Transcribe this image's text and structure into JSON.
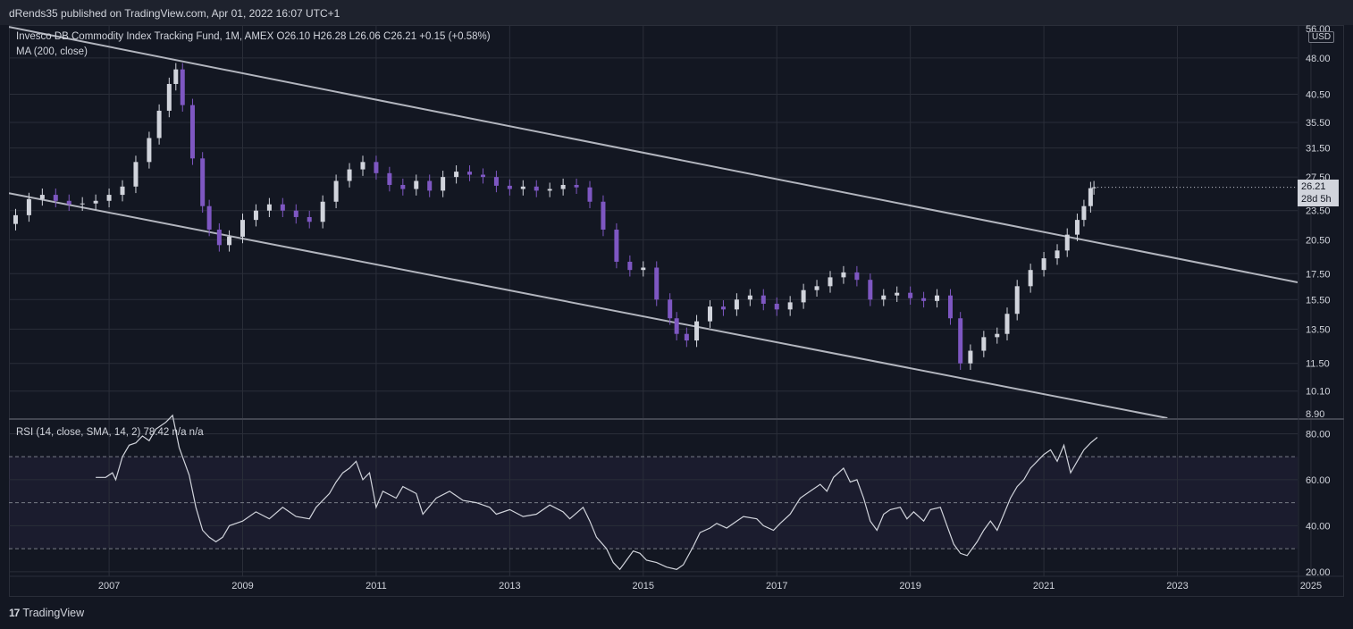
{
  "header": {
    "published": "dRends35 published on TradingView.com, Apr 01, 2022 16:07 UTC+1"
  },
  "legend": {
    "symbol": "Invesco DB Commodity Index Tracking Fund, 1M, AMEX  O26.10  H26.28  L26.06  C26.21  +0.15 (+0.58%)",
    "ma": "MA (200, close)",
    "rsi": "RSI (14, close, SMA, 14, 2)  78.42  n/a  n/a"
  },
  "price_axis": {
    "currency": "USD",
    "last_price": "26.21",
    "countdown": "28d 5h",
    "ticks": [
      "56.00",
      "48.00",
      "40.50",
      "35.50",
      "31.50",
      "27.50",
      "23.50",
      "20.50",
      "17.50",
      "15.50",
      "13.50",
      "11.50",
      "10.10",
      "8.90"
    ]
  },
  "rsi_axis": {
    "ticks": [
      "80.00",
      "60.00",
      "40.00",
      "20.00"
    ]
  },
  "time_axis": {
    "ticks": [
      "2007",
      "2009",
      "2011",
      "2013",
      "2015",
      "2017",
      "2019",
      "2021",
      "2023",
      "2025"
    ]
  },
  "footer": {
    "brand": "TradingView",
    "logo_icon": "tradingview-logo-icon"
  },
  "colors": {
    "background": "#131722",
    "up": "#d1d4dc",
    "down": "#7e57c2",
    "rsi_band": "#7e57c2"
  },
  "chart_data": [
    {
      "type": "candlestick",
      "title": "Invesco DB Commodity Index Tracking Fund, 1M, AMEX",
      "interval": "1M",
      "scale": "log",
      "ylim": [
        8.9,
        56
      ],
      "xlim": [
        2006.0,
        2025.3
      ],
      "last": {
        "open": 26.1,
        "high": 26.28,
        "low": 26.06,
        "close": 26.21,
        "change": "+0.15 (+0.58%)"
      },
      "close_series": [
        [
          2006.1,
          23.0
        ],
        [
          2006.3,
          24.8
        ],
        [
          2006.5,
          25.3
        ],
        [
          2006.7,
          24.6
        ],
        [
          2006.9,
          24.2
        ],
        [
          2007.1,
          24.3
        ],
        [
          2007.3,
          24.6
        ],
        [
          2007.5,
          25.3
        ],
        [
          2007.7,
          26.3
        ],
        [
          2007.9,
          29.5
        ],
        [
          2008.1,
          33.0
        ],
        [
          2008.25,
          37.5
        ],
        [
          2008.4,
          42.5
        ],
        [
          2008.5,
          45.5
        ],
        [
          2008.6,
          38.5
        ],
        [
          2008.75,
          30.0
        ],
        [
          2008.9,
          24.0
        ],
        [
          2009.0,
          21.5
        ],
        [
          2009.15,
          20.0
        ],
        [
          2009.3,
          20.8
        ],
        [
          2009.5,
          22.5
        ],
        [
          2009.7,
          23.5
        ],
        [
          2009.9,
          24.2
        ],
        [
          2010.1,
          23.5
        ],
        [
          2010.3,
          22.8
        ],
        [
          2010.5,
          22.3
        ],
        [
          2010.7,
          24.5
        ],
        [
          2010.9,
          27.0
        ],
        [
          2011.1,
          28.5
        ],
        [
          2011.3,
          29.5
        ],
        [
          2011.5,
          28.0
        ],
        [
          2011.7,
          26.5
        ],
        [
          2011.9,
          26.0
        ],
        [
          2012.1,
          27.0
        ],
        [
          2012.3,
          25.8
        ],
        [
          2012.5,
          27.5
        ],
        [
          2012.7,
          28.2
        ],
        [
          2012.9,
          27.8
        ],
        [
          2013.1,
          27.5
        ],
        [
          2013.3,
          26.4
        ],
        [
          2013.5,
          26.0
        ],
        [
          2013.7,
          26.3
        ],
        [
          2013.9,
          25.8
        ],
        [
          2014.1,
          26.0
        ],
        [
          2014.3,
          26.5
        ],
        [
          2014.5,
          26.2
        ],
        [
          2014.7,
          24.5
        ],
        [
          2014.9,
          21.5
        ],
        [
          2015.1,
          18.5
        ],
        [
          2015.3,
          17.8
        ],
        [
          2015.5,
          18.0
        ],
        [
          2015.7,
          15.5
        ],
        [
          2015.9,
          14.2
        ],
        [
          2016.0,
          13.2
        ],
        [
          2016.15,
          12.8
        ],
        [
          2016.3,
          14.0
        ],
        [
          2016.5,
          15.0
        ],
        [
          2016.7,
          14.8
        ],
        [
          2016.9,
          15.5
        ],
        [
          2017.1,
          15.8
        ],
        [
          2017.3,
          15.2
        ],
        [
          2017.5,
          14.8
        ],
        [
          2017.7,
          15.3
        ],
        [
          2017.9,
          16.2
        ],
        [
          2018.1,
          16.5
        ],
        [
          2018.3,
          17.2
        ],
        [
          2018.5,
          17.6
        ],
        [
          2018.7,
          17.0
        ],
        [
          2018.9,
          15.5
        ],
        [
          2019.1,
          15.8
        ],
        [
          2019.3,
          16.0
        ],
        [
          2019.5,
          15.6
        ],
        [
          2019.7,
          15.4
        ],
        [
          2019.9,
          15.8
        ],
        [
          2020.1,
          14.2
        ],
        [
          2020.25,
          11.5
        ],
        [
          2020.4,
          12.2
        ],
        [
          2020.6,
          13.0
        ],
        [
          2020.8,
          13.2
        ],
        [
          2020.95,
          14.5
        ],
        [
          2021.1,
          16.5
        ],
        [
          2021.3,
          17.8
        ],
        [
          2021.5,
          18.8
        ],
        [
          2021.7,
          19.5
        ],
        [
          2021.85,
          21.0
        ],
        [
          2022.0,
          22.5
        ],
        [
          2022.1,
          24.0
        ],
        [
          2022.2,
          26.1
        ],
        [
          2022.25,
          26.21
        ]
      ],
      "trend_lines": [
        {
          "from": [
            2006.0,
            55.5
          ],
          "to": [
            2025.3,
            16.8
          ]
        },
        {
          "from": [
            2006.0,
            25.5
          ],
          "to": [
            2023.35,
            8.9
          ]
        }
      ],
      "indicators": [
        {
          "name": "MA (200, close)"
        }
      ]
    },
    {
      "type": "line",
      "title": "RSI (14, close, SMA, 14, 2)",
      "ylim": [
        18,
        86
      ],
      "bands": [
        30,
        50,
        70
      ],
      "last_value": 78.42,
      "values": [
        [
          2007.3,
          61
        ],
        [
          2007.45,
          61
        ],
        [
          2007.55,
          63
        ],
        [
          2007.6,
          60
        ],
        [
          2007.7,
          70
        ],
        [
          2007.8,
          75
        ],
        [
          2007.9,
          76
        ],
        [
          2008.0,
          79
        ],
        [
          2008.1,
          77
        ],
        [
          2008.2,
          82
        ],
        [
          2008.35,
          85
        ],
        [
          2008.45,
          88
        ],
        [
          2008.55,
          74
        ],
        [
          2008.7,
          62
        ],
        [
          2008.8,
          48
        ],
        [
          2008.9,
          38
        ],
        [
          2009.0,
          35
        ],
        [
          2009.1,
          33
        ],
        [
          2009.2,
          35
        ],
        [
          2009.3,
          40
        ],
        [
          2009.5,
          42
        ],
        [
          2009.7,
          46
        ],
        [
          2009.9,
          43
        ],
        [
          2010.1,
          48
        ],
        [
          2010.3,
          44
        ],
        [
          2010.5,
          43
        ],
        [
          2010.6,
          48
        ],
        [
          2010.8,
          54
        ],
        [
          2010.9,
          59
        ],
        [
          2011.0,
          63
        ],
        [
          2011.1,
          65
        ],
        [
          2011.2,
          68
        ],
        [
          2011.3,
          60
        ],
        [
          2011.4,
          63
        ],
        [
          2011.5,
          48
        ],
        [
          2011.6,
          55
        ],
        [
          2011.8,
          52
        ],
        [
          2011.9,
          57
        ],
        [
          2012.1,
          54
        ],
        [
          2012.2,
          45
        ],
        [
          2012.4,
          52
        ],
        [
          2012.6,
          55
        ],
        [
          2012.8,
          51
        ],
        [
          2013.0,
          50
        ],
        [
          2013.2,
          48
        ],
        [
          2013.3,
          45
        ],
        [
          2013.5,
          47
        ],
        [
          2013.7,
          44
        ],
        [
          2013.9,
          45
        ],
        [
          2014.1,
          49
        ],
        [
          2014.3,
          46
        ],
        [
          2014.4,
          43
        ],
        [
          2014.6,
          48
        ],
        [
          2014.7,
          42
        ],
        [
          2014.8,
          35
        ],
        [
          2014.95,
          30
        ],
        [
          2015.05,
          24
        ],
        [
          2015.15,
          21
        ],
        [
          2015.25,
          25
        ],
        [
          2015.35,
          29
        ],
        [
          2015.45,
          28
        ],
        [
          2015.55,
          25
        ],
        [
          2015.7,
          24
        ],
        [
          2015.85,
          22
        ],
        [
          2016.0,
          21
        ],
        [
          2016.1,
          23
        ],
        [
          2016.25,
          31
        ],
        [
          2016.35,
          37
        ],
        [
          2016.5,
          39
        ],
        [
          2016.6,
          41
        ],
        [
          2016.75,
          39
        ],
        [
          2016.9,
          42
        ],
        [
          2017.0,
          44
        ],
        [
          2017.2,
          43
        ],
        [
          2017.3,
          40
        ],
        [
          2017.45,
          38
        ],
        [
          2017.55,
          41
        ],
        [
          2017.7,
          45
        ],
        [
          2017.85,
          52
        ],
        [
          2018.0,
          55
        ],
        [
          2018.15,
          58
        ],
        [
          2018.25,
          55
        ],
        [
          2018.35,
          61
        ],
        [
          2018.5,
          65
        ],
        [
          2018.6,
          59
        ],
        [
          2018.7,
          60
        ],
        [
          2018.8,
          52
        ],
        [
          2018.9,
          42
        ],
        [
          2019.0,
          38
        ],
        [
          2019.1,
          45
        ],
        [
          2019.2,
          47
        ],
        [
          2019.35,
          48
        ],
        [
          2019.45,
          43
        ],
        [
          2019.55,
          46
        ],
        [
          2019.7,
          42
        ],
        [
          2019.8,
          47
        ],
        [
          2019.95,
          48
        ],
        [
          2020.05,
          40
        ],
        [
          2020.15,
          32
        ],
        [
          2020.25,
          28
        ],
        [
          2020.35,
          27
        ],
        [
          2020.5,
          33
        ],
        [
          2020.6,
          38
        ],
        [
          2020.7,
          42
        ],
        [
          2020.8,
          38
        ],
        [
          2020.9,
          45
        ],
        [
          2021.0,
          52
        ],
        [
          2021.1,
          57
        ],
        [
          2021.2,
          60
        ],
        [
          2021.3,
          65
        ],
        [
          2021.4,
          68
        ],
        [
          2021.5,
          71
        ],
        [
          2021.6,
          73
        ],
        [
          2021.7,
          68
        ],
        [
          2021.8,
          75
        ],
        [
          2021.9,
          63
        ],
        [
          2022.0,
          68
        ],
        [
          2022.1,
          73
        ],
        [
          2022.2,
          76
        ],
        [
          2022.3,
          78.42
        ]
      ]
    }
  ]
}
